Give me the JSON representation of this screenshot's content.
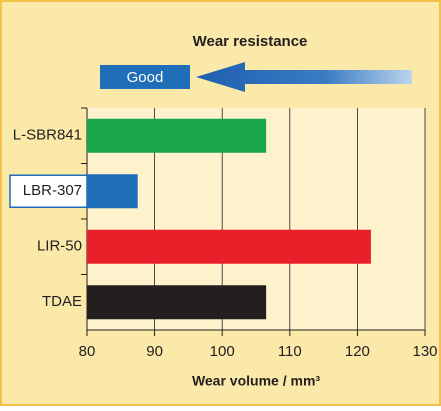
{
  "chart_data": {
    "type": "hbar",
    "title": "Wear resistance",
    "annotation": "Good",
    "x_label": "Wear volume / mm³",
    "categories": [
      "L-SBR841",
      "LBR-307",
      "LIR-50",
      "TDAE"
    ],
    "values": [
      106.5,
      87.5,
      122,
      106.5
    ],
    "colors": [
      "#1aa64a",
      "#1f6fb8",
      "#e8202a",
      "#231f20"
    ],
    "highlight_index": 1,
    "xlim": [
      80,
      130
    ],
    "xticks": [
      80,
      90,
      100,
      110,
      120,
      130
    ],
    "grid": true
  }
}
